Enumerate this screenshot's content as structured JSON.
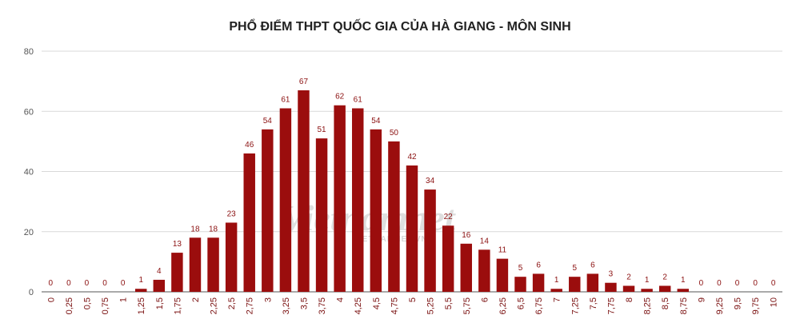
{
  "chart_data": {
    "type": "bar",
    "title": "PHỔ ĐIỂM THPT QUỐC GIA CỦA HÀ GIANG - MÔN SINH",
    "xlabel": "",
    "ylabel": "",
    "ylim": [
      0,
      80
    ],
    "yticks": [
      "0",
      "20",
      "40",
      "60",
      "80"
    ],
    "grid": true,
    "bar_color": "#9b0d0d",
    "data_label_color": "#8b1010",
    "categories": [
      "0",
      "0,25",
      "0,5",
      "0,75",
      "1",
      "1,25",
      "1,5",
      "1,75",
      "2",
      "2,25",
      "2,5",
      "2,75",
      "3",
      "3,25",
      "3,5",
      "3,75",
      "4",
      "4,25",
      "4,5",
      "4,75",
      "5",
      "5,25",
      "5,5",
      "5,75",
      "6",
      "6,25",
      "6,5",
      "6,75",
      "7",
      "7,25",
      "7,5",
      "7,75",
      "8",
      "8,25",
      "8,5",
      "8,75",
      "9",
      "9,25",
      "9,5",
      "9,75",
      "10"
    ],
    "values": [
      0,
      0,
      0,
      0,
      0,
      1,
      4,
      13,
      18,
      18,
      23,
      46,
      54,
      61,
      67,
      51,
      62,
      61,
      54,
      50,
      42,
      34,
      22,
      16,
      14,
      11,
      5,
      6,
      1,
      5,
      6,
      3,
      2,
      1,
      2,
      1,
      0,
      0,
      0,
      0,
      0
    ]
  },
  "watermark": {
    "main_text": "Vietnamnet",
    "sub_text": "VIETNAMNET.VN"
  }
}
